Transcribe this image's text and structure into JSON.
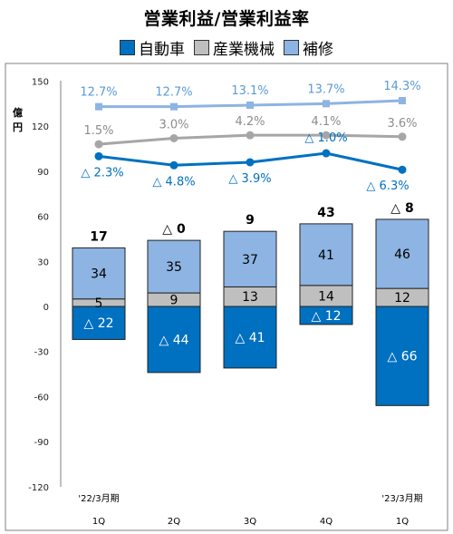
{
  "title": "営業利益/営業利益率",
  "legend": [
    {
      "label": "自動車",
      "color": "#0070c0"
    },
    {
      "label": "産業機械",
      "color": "#bfbfbf"
    },
    {
      "label": "補修",
      "color": "#8db4e2"
    }
  ],
  "colors": {
    "auto": "#0070c0",
    "industrial": "#bfbfbf",
    "repair": "#8db4e2",
    "line_auto": "#0070c0",
    "line_industrial": "#a6a6a6",
    "line_repair": "#8db4e2",
    "pct_auto": "#0070c0",
    "pct_industrial": "#8c8c8c",
    "pct_repair": "#5b9bd5"
  },
  "chart_data": {
    "type": "bar",
    "title": "営業利益/営業利益率",
    "ylabel": "億円",
    "ylim": [
      -120,
      150
    ],
    "yticks": [
      150,
      120,
      90,
      60,
      30,
      0,
      -30,
      -60,
      -90,
      -120
    ],
    "categories": [
      "1Q",
      "2Q",
      "3Q",
      "4Q",
      "1Q"
    ],
    "period_labels": [
      "'22/3月期",
      "",
      "",
      "",
      "'23/3月期"
    ],
    "series": [
      {
        "name": "自動車",
        "values": [
          -22,
          -44,
          -41,
          -12,
          -66
        ],
        "labels": [
          "△ 22",
          "△ 44",
          "△ 41",
          "△ 12",
          "△ 66"
        ]
      },
      {
        "name": "産業機械",
        "values": [
          5,
          9,
          13,
          14,
          12
        ],
        "labels": [
          "5",
          "9",
          "13",
          "14",
          "12"
        ]
      },
      {
        "name": "補修",
        "values": [
          34,
          35,
          37,
          41,
          46
        ],
        "labels": [
          "34",
          "35",
          "37",
          "41",
          "46"
        ]
      }
    ],
    "totals": [
      "17",
      "△ 0",
      "9",
      "43",
      "△ 8"
    ],
    "margins": [
      {
        "name": "補修",
        "labels": [
          "12.7%",
          "12.7%",
          "13.1%",
          "13.7%",
          "14.3%"
        ],
        "line_y": [
          133,
          133,
          134,
          135,
          137
        ]
      },
      {
        "name": "産業機械",
        "labels": [
          "1.5%",
          "3.0%",
          "4.2%",
          "4.1%",
          "3.6%"
        ],
        "line_y": [
          108,
          112,
          114,
          114,
          113
        ]
      },
      {
        "name": "自動車",
        "labels": [
          "△ 2.3%",
          "△ 4.8%",
          "△ 3.9%",
          "△ 1.0%",
          "△ 6.3%"
        ],
        "line_y": [
          100,
          94,
          96,
          102,
          91
        ]
      }
    ],
    "grid": false
  }
}
